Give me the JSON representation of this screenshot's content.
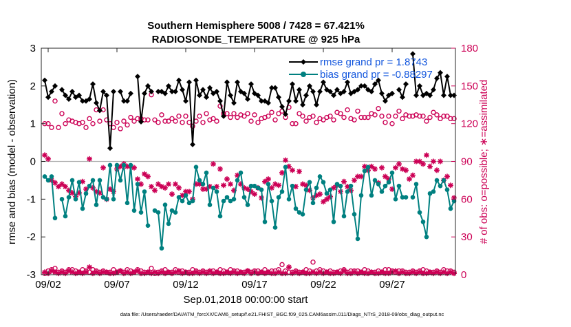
{
  "chart_data": {
    "type": "line",
    "title": "Southern Hemisphere 5008 / 7428 = 67.421%",
    "subtitle": "RADIOSONDE_TEMPERATURE @ 925 hPa",
    "xlabel": "Sep.01,2018 00:00:00 start",
    "ylabel_left": "rmse and bias (model - observation)",
    "ylabel_right": "# of obs: o=possible; ∗=assimilated",
    "footer": "data file: /Users/raeder/DAI/ATM_forcXX/CAM6_setup/f.e21.FHIST_BGC.f09_025.CAM6assim.011/Diags_NTrS_2018-09/obs_diag_output.nc",
    "ylim_left": [
      -3,
      3
    ],
    "ylim_right": [
      0,
      180
    ],
    "xlim": [
      1.5,
      31.6
    ],
    "x_ticks": [
      2,
      7,
      12,
      17,
      22,
      27
    ],
    "x_tick_labels": [
      "09/02",
      "09/07",
      "09/12",
      "09/17",
      "09/22",
      "09/27"
    ],
    "y_ticks_left": [
      -3,
      -2,
      -1,
      0,
      1,
      2,
      3
    ],
    "y_ticks_right": [
      0,
      30,
      60,
      90,
      120,
      150,
      180
    ],
    "zero_line": 0,
    "legend_position": "top-right",
    "colors": {
      "rmse": "#000000",
      "bias": "#008080",
      "counts": "#cc0055",
      "legend_text": "#1155dd"
    },
    "x": [
      1.75,
      2.0,
      2.25,
      2.5,
      2.75,
      3.0,
      3.25,
      3.5,
      3.75,
      4.0,
      4.25,
      4.5,
      4.75,
      5.0,
      5.25,
      5.5,
      5.75,
      6.0,
      6.25,
      6.5,
      6.75,
      7.0,
      7.25,
      7.5,
      7.75,
      8.0,
      8.25,
      8.5,
      8.75,
      9.0,
      9.25,
      9.5,
      9.75,
      10.0,
      10.25,
      10.5,
      10.75,
      11.0,
      11.25,
      11.5,
      11.75,
      12.0,
      12.25,
      12.5,
      12.75,
      13.0,
      13.25,
      13.5,
      13.75,
      14.0,
      14.25,
      14.5,
      14.75,
      15.0,
      15.25,
      15.5,
      15.75,
      16.0,
      16.25,
      16.5,
      16.75,
      17.0,
      17.25,
      17.5,
      17.75,
      18.0,
      18.25,
      18.5,
      18.75,
      19.0,
      19.25,
      19.5,
      19.75,
      20.0,
      20.25,
      20.5,
      20.75,
      21.0,
      21.25,
      21.5,
      21.75,
      22.0,
      22.25,
      22.5,
      22.75,
      23.0,
      23.25,
      23.5,
      23.75,
      24.0,
      24.25,
      24.5,
      24.75,
      25.0,
      25.25,
      25.5,
      25.75,
      26.0,
      26.25,
      26.5,
      26.75,
      27.0,
      27.25,
      27.5,
      27.75,
      28.0,
      28.25,
      28.5,
      28.75,
      29.0,
      29.25,
      29.5,
      29.75,
      30.0,
      30.25,
      30.5,
      30.75,
      31.0,
      31.25,
      31.5
    ],
    "series": [
      {
        "name": "rmse grand pr = 1.8743",
        "role": "rmse",
        "marker": "filled-diamond",
        "values": [
          2.15,
          1.7,
          1.85,
          2.0,
          null,
          1.9,
          1.75,
          1.65,
          1.85,
          1.7,
          1.75,
          1.6,
          1.6,
          1.65,
          2.05,
          1.55,
          1.35,
          1.85,
          1.75,
          0.35,
          1.85,
          null,
          1.85,
          1.6,
          1.6,
          1.8,
          null,
          2.25,
          1.05,
          1.8,
          2.0,
          1.85,
          null,
          1.85,
          1.85,
          1.8,
          2.0,
          1.85,
          1.85,
          2.15,
          1.9,
          1.6,
          2.1,
          0.45,
          2.15,
          1.75,
          1.9,
          1.7,
          1.95,
          1.8,
          1.85,
          1.6,
          1.2,
          2.1,
          1.75,
          1.55,
          2.1,
          1.85,
          1.8,
          1.65,
          2.05,
          1.8,
          1.75,
          1.6,
          1.6,
          1.55,
          1.95,
          1.95,
          1.7,
          1.45,
          1.25,
          1.6,
          2.05,
          1.6,
          1.9,
          1.5,
          1.75,
          2.0,
          1.85,
          1.5,
          1.85,
          2.1,
          1.9,
          1.85,
          1.75,
          1.9,
          1.8,
          1.85,
          2.1,
          1.8,
          1.85,
          1.9,
          2.0,
          2.0,
          1.9,
          1.85,
          2.05,
          2.15,
          1.8,
          1.6,
          1.75,
          1.8,
          null,
          1.9,
          1.7,
          2.05,
          null,
          2.85,
          1.75,
          2.0,
          1.75,
          1.8,
          1.75,
          1.9,
          2.2,
          2.35,
          1.75,
          2.25,
          1.75,
          1.75
        ]
      },
      {
        "name": "bias grand pr = -0.88297",
        "role": "bias",
        "marker": "filled-circle",
        "values": [
          -0.4,
          -0.5,
          -0.4,
          -1.5,
          null,
          -1.0,
          -1.45,
          -0.95,
          -0.5,
          -1.0,
          -0.55,
          -1.25,
          -0.85,
          -0.65,
          -0.5,
          -1.15,
          -0.5,
          -0.95,
          -1.0,
          -0.1,
          -1.0,
          -0.1,
          -0.5,
          -0.1,
          -1.1,
          -0.1,
          -1.3,
          -0.6,
          -1.35,
          -0.8,
          -1.7,
          null,
          -1.3,
          -1.35,
          -2.3,
          -1.15,
          -1.65,
          -1.3,
          -1.35,
          -0.95,
          -1.05,
          -0.9,
          -1.1,
          -1.05,
          -0.15,
          -0.5,
          -0.6,
          -0.3,
          -1.15,
          -0.7,
          -0.8,
          -1.45,
          -1.05,
          -0.95,
          -1.05,
          -1.0,
          -0.5,
          -0.3,
          -0.95,
          -1.15,
          -0.65,
          -0.65,
          -0.7,
          -0.75,
          -1.6,
          -0.6,
          -1.05,
          -1.75,
          -0.95,
          -0.8,
          -0.15,
          -1.0,
          -0.65,
          -1.25,
          -1.35,
          -1.4,
          -0.75,
          -0.55,
          -1.1,
          -0.7,
          -0.4,
          -0.55,
          -0.85,
          -0.75,
          -1.6,
          -0.6,
          -0.65,
          -1.45,
          -0.8,
          -0.65,
          -1.4,
          -2.05,
          -0.9,
          -0.25,
          -0.15,
          -0.9,
          -0.5,
          -0.6,
          -0.8,
          -0.65,
          -0.55,
          -0.3,
          -1.0,
          -0.65,
          -0.95,
          -0.95,
          null,
          -0.95,
          -0.6,
          -1.35,
          -1.6,
          -2.0,
          -0.85,
          -0.8,
          -0.5,
          -0.65,
          -0.5,
          -0.75,
          -1.25,
          -1.05
        ]
      }
    ],
    "obs_possible": [
      120,
      120,
      117,
      138,
      117,
      128,
      120,
      123,
      122,
      121,
      120,
      121,
      117,
      124,
      120,
      131,
      122,
      131,
      123,
      120,
      117,
      121,
      116,
      122,
      119,
      125,
      122,
      124,
      124,
      123,
      123,
      143,
      123,
      121,
      127,
      122,
      122,
      124,
      122,
      126,
      121,
      126,
      121,
      118,
      122,
      126,
      121,
      128,
      123,
      124,
      122,
      134,
      128,
      128,
      125,
      128,
      125,
      127,
      126,
      128,
      122,
      127,
      121,
      124,
      125,
      126,
      129,
      123,
      128,
      130,
      125,
      133,
      120,
      120,
      128,
      126,
      122,
      125,
      126,
      121,
      124,
      123,
      125,
      126,
      123,
      129,
      128,
      125,
      131,
      124,
      123,
      130,
      125,
      125,
      125,
      128,
      127,
      132,
      126,
      121,
      126,
      120,
      126,
      130,
      124,
      127,
      126,
      126,
      127,
      126,
      126,
      122,
      125,
      129,
      127,
      124,
      126,
      126,
      124,
      124
    ],
    "obs_assimilated": [
      95,
      92,
      75,
      73,
      70,
      72,
      70,
      67,
      65,
      62,
      65,
      74,
      68,
      92,
      69,
      66,
      65,
      85,
      60,
      68,
      66,
      84,
      86,
      88,
      86,
      86,
      85,
      76,
      72,
      80,
      78,
      70,
      67,
      72,
      70,
      69,
      72,
      64,
      72,
      69,
      63,
      66,
      66,
      60,
      72,
      72,
      68,
      68,
      70,
      88,
      70,
      84,
      71,
      76,
      72,
      67,
      79,
      72,
      69,
      68,
      66,
      64,
      69,
      61,
      74,
      76,
      69,
      72,
      71,
      81,
      91,
      86,
      83,
      70,
      82,
      72,
      71,
      67,
      61,
      63,
      64,
      58,
      60,
      62,
      69,
      71,
      66,
      74,
      70,
      67,
      75,
      78,
      78,
      86,
      83,
      86,
      84,
      73,
      85,
      78,
      76,
      68,
      85,
      88,
      84,
      83,
      76,
      79,
      90,
      90,
      88,
      95,
      86,
      90,
      83,
      90,
      75,
      78,
      71,
      61
    ],
    "obs_possible_bottom": [
      1,
      3,
      4,
      5,
      2,
      3,
      2,
      4,
      4,
      3,
      2,
      4,
      3,
      2,
      4,
      3,
      2,
      3,
      2,
      2,
      4,
      2,
      3,
      2,
      4,
      3,
      2,
      4,
      3,
      2,
      2,
      5,
      1,
      2,
      3,
      4,
      2,
      2,
      4,
      2,
      3,
      2,
      2,
      4,
      3,
      2,
      3,
      2,
      2,
      3,
      2,
      4,
      3,
      2,
      4,
      3,
      3,
      2,
      2,
      3,
      2,
      3,
      3,
      2,
      4,
      2,
      3,
      3,
      4,
      8,
      3,
      2,
      2,
      3,
      2,
      2,
      4,
      3,
      10,
      3,
      4,
      3,
      2,
      3,
      2,
      2,
      3,
      4,
      2,
      3,
      3,
      3,
      2,
      4,
      3,
      2,
      2,
      3,
      2,
      4,
      4,
      3,
      2,
      3,
      3,
      2,
      2,
      3,
      2,
      3,
      4,
      3,
      2,
      2,
      3,
      2,
      4,
      3,
      3,
      2
    ],
    "obs_assimilated_bottom": [
      2,
      1,
      3,
      2,
      1,
      2,
      1,
      3,
      2,
      1,
      2,
      1,
      2,
      6,
      1,
      2,
      1,
      2,
      2,
      1,
      1,
      2,
      3,
      1,
      2,
      1,
      2,
      3,
      1,
      1,
      2,
      1,
      2,
      1,
      2,
      1,
      2,
      1,
      2,
      3,
      1,
      2,
      1,
      1,
      2,
      1,
      2,
      1,
      3,
      1,
      2,
      1,
      1,
      2,
      1,
      2,
      1,
      2,
      1,
      3,
      1,
      2,
      1,
      2,
      1,
      2,
      1,
      1,
      2,
      1,
      1,
      6,
      1,
      2,
      1,
      2,
      1,
      1,
      2,
      1,
      2,
      1,
      2,
      1,
      1,
      2,
      1,
      3,
      1,
      1,
      2,
      1,
      2,
      1,
      1,
      2,
      1,
      1,
      2,
      1,
      1,
      2,
      3,
      1,
      2,
      1,
      1,
      2,
      1,
      2,
      1,
      1,
      2,
      1,
      2,
      1,
      2,
      1,
      2,
      1
    ]
  }
}
